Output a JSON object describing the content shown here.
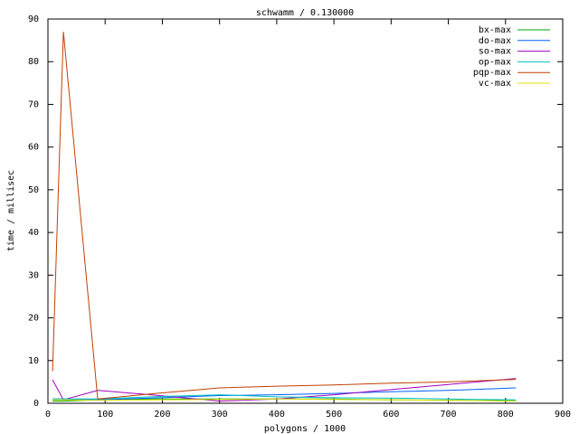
{
  "chart_data": {
    "type": "line",
    "title": "schwamm / 0.130000",
    "x_label": "polygons / 1000",
    "y_label": "time / millisec",
    "x": [
      8,
      27,
      87,
      180,
      300,
      400,
      500,
      600,
      700,
      818
    ],
    "series": [
      {
        "name": "bx-max",
        "color": "#00a000",
        "values": [
          0.5,
          0.5,
          0.8,
          1.0,
          1.0,
          1.0,
          1.0,
          0.8,
          0.7,
          0.6
        ]
      },
      {
        "name": "do-max",
        "color": "#0060ff",
        "values": [
          1.0,
          1.0,
          0.8,
          1.2,
          1.8,
          2.0,
          2.3,
          2.7,
          3.0,
          3.6
        ]
      },
      {
        "name": "so-max",
        "color": "#a000c0",
        "values": [
          5.5,
          0.8,
          3.0,
          2.0,
          0.5,
          1.0,
          2.0,
          3.2,
          4.4,
          5.8
        ]
      },
      {
        "name": "op-max",
        "color": "#00c0c0",
        "values": [
          1.0,
          1.0,
          1.0,
          1.5,
          2.0,
          1.5,
          1.3,
          1.2,
          1.0,
          0.8
        ]
      },
      {
        "name": "pqp-max",
        "color": "#c04000",
        "values": [
          7.5,
          87,
          1.0,
          2.2,
          3.6,
          4.0,
          4.3,
          4.7,
          5.0,
          5.6
        ]
      },
      {
        "name": "vc-max",
        "color": "#e0e000",
        "values": [
          0.8,
          0.8,
          0.7,
          0.8,
          0.9,
          1.0,
          0.9,
          0.8,
          0.7,
          0.5
        ]
      }
    ],
    "xlim": [
      0,
      900
    ],
    "xticks": [
      0,
      100,
      200,
      300,
      400,
      500,
      600,
      700,
      800,
      900
    ],
    "ylim": [
      0,
      90
    ],
    "yticks": [
      0,
      10,
      20,
      30,
      40,
      50,
      60,
      70,
      80,
      90
    ],
    "legend": "top-right"
  }
}
